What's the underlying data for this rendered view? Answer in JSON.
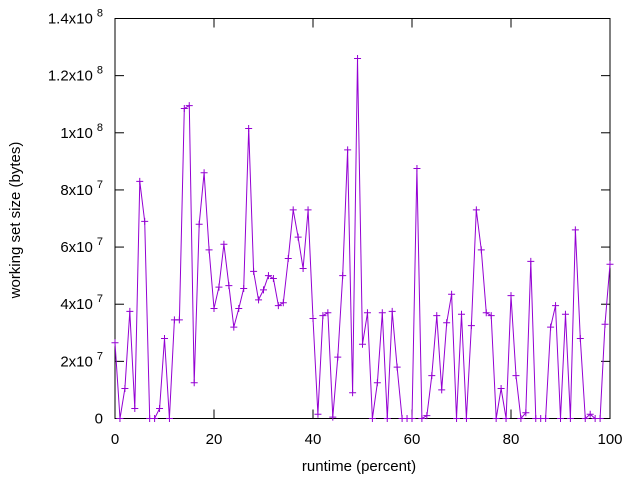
{
  "chart_data": {
    "type": "line",
    "title": "",
    "xlabel": "runtime (percent)",
    "ylabel": "working set size (bytes)",
    "xlim": [
      0,
      100
    ],
    "ylim": [
      0,
      140000000
    ],
    "x_ticks": [
      0,
      20,
      40,
      60,
      80,
      100
    ],
    "x_tick_labels": [
      "0",
      "20",
      "40",
      "60",
      "80",
      "100"
    ],
    "y_ticks": [
      0,
      20000000,
      40000000,
      60000000,
      80000000,
      100000000,
      120000000,
      140000000
    ],
    "y_tick_labels": [
      {
        "mantissa": "0",
        "exponent": ""
      },
      {
        "mantissa": "2x10",
        "exponent": "7"
      },
      {
        "mantissa": "4x10",
        "exponent": "7"
      },
      {
        "mantissa": "6x10",
        "exponent": "7"
      },
      {
        "mantissa": "8x10",
        "exponent": "7"
      },
      {
        "mantissa": "1x10",
        "exponent": "8"
      },
      {
        "mantissa": "1.2x10",
        "exponent": "8"
      },
      {
        "mantissa": "1.4x10",
        "exponent": "8"
      }
    ],
    "grid": false,
    "legend": "none",
    "marker": "plus",
    "series": [
      {
        "color": "#9400d3",
        "x": [
          0,
          1,
          2,
          3,
          4,
          5,
          6,
          7,
          8,
          9,
          10,
          11,
          12,
          13,
          14,
          15,
          16,
          17,
          18,
          19,
          20,
          21,
          22,
          23,
          24,
          25,
          26,
          27,
          28,
          29,
          30,
          31,
          32,
          33,
          34,
          35,
          36,
          37,
          38,
          39,
          40,
          41,
          42,
          43,
          44,
          45,
          46,
          47,
          48,
          49,
          50,
          51,
          52,
          53,
          54,
          55,
          56,
          57,
          58,
          59,
          60,
          61,
          62,
          63,
          64,
          65,
          66,
          67,
          68,
          69,
          70,
          71,
          72,
          73,
          74,
          75,
          76,
          77,
          78,
          79,
          80,
          81,
          82,
          83,
          84,
          85,
          86,
          87,
          88,
          89,
          90,
          91,
          92,
          93,
          94,
          95,
          96,
          97,
          98,
          99,
          100
        ],
        "y": [
          26500000,
          0,
          10500000,
          37500000,
          3500000,
          83000000,
          69000000,
          0,
          0,
          3500000,
          28000000,
          0,
          34500000,
          34500000,
          108500000,
          109500000,
          12500000,
          68000000,
          86000000,
          59000000,
          38500000,
          46000000,
          61000000,
          46500000,
          32000000,
          38500000,
          45500000,
          101500000,
          51500000,
          41500000,
          45000000,
          50000000,
          49000000,
          39500000,
          40500000,
          56000000,
          73000000,
          63500000,
          52500000,
          73000000,
          35000000,
          1500000,
          36000000,
          37000000,
          500000,
          21500000,
          50000000,
          94000000,
          9000000,
          126000000,
          26000000,
          37000000,
          0,
          12500000,
          37000000,
          0,
          37500000,
          18000000,
          0,
          0,
          0,
          87500000,
          0,
          1000000,
          15000000,
          36000000,
          10000000,
          33500000,
          43500000,
          0,
          36500000,
          0,
          32500000,
          73000000,
          59000000,
          37000000,
          36000000,
          0,
          10500000,
          0,
          43000000,
          15000000,
          0,
          2000000,
          55000000,
          0,
          0,
          0,
          32000000,
          39500000,
          0,
          36500000,
          0,
          66000000,
          28000000,
          0,
          1500000,
          0,
          0,
          33000000,
          54000000
        ]
      }
    ]
  }
}
